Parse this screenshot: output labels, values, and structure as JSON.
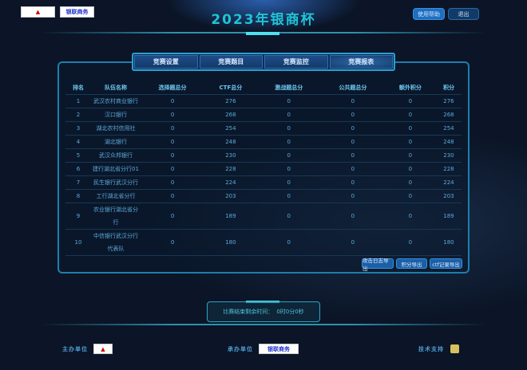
{
  "header": {
    "title": "2023年银商杯",
    "help_label": "使用帮助",
    "logout_label": "退出",
    "logo_left": "中国人民银行",
    "logo_right": "银联商务"
  },
  "tabs": [
    {
      "label": "竞赛设置"
    },
    {
      "label": "竞赛题目"
    },
    {
      "label": "竞赛监控"
    },
    {
      "label": "竞赛报表",
      "active": true
    }
  ],
  "table": {
    "columns": [
      "排名",
      "队伍名称",
      "选择题总分",
      "CTF总分",
      "激战题总分",
      "公共题总分",
      "额外积分",
      "积分"
    ],
    "rows": [
      [
        "1",
        "武汉农村商业银行",
        "0",
        "276",
        "0",
        "0",
        "0",
        "276"
      ],
      [
        "2",
        "汉口银行",
        "0",
        "268",
        "0",
        "0",
        "0",
        "268"
      ],
      [
        "3",
        "湖北农村信用社",
        "0",
        "254",
        "0",
        "0",
        "0",
        "254"
      ],
      [
        "4",
        "湖北银行",
        "0",
        "248",
        "0",
        "0",
        "0",
        "248"
      ],
      [
        "5",
        "武汉众邦银行",
        "0",
        "230",
        "0",
        "0",
        "0",
        "230"
      ],
      [
        "6",
        "建行湖北省分行01",
        "0",
        "228",
        "0",
        "0",
        "0",
        "228"
      ],
      [
        "7",
        "民生银行武汉分行",
        "0",
        "224",
        "0",
        "0",
        "0",
        "224"
      ],
      [
        "8",
        "工行湖北省分行",
        "0",
        "203",
        "0",
        "0",
        "0",
        "203"
      ],
      [
        "9",
        "农业银行湖北省分行",
        "0",
        "189",
        "0",
        "0",
        "0",
        "189"
      ],
      [
        "10",
        "中信银行武汉分行代表队",
        "0",
        "180",
        "0",
        "0",
        "0",
        "180"
      ]
    ]
  },
  "exports": {
    "attack_log": "攻击日志导出",
    "score": "积分导出",
    "ctf_record": "ctf记录导出"
  },
  "timer": {
    "label": "比赛结束剩余时间：",
    "value": "0时0分0秒"
  },
  "footer": {
    "organizer": "主办单位",
    "co_organizer": "承办单位",
    "support": "技术支持"
  }
}
